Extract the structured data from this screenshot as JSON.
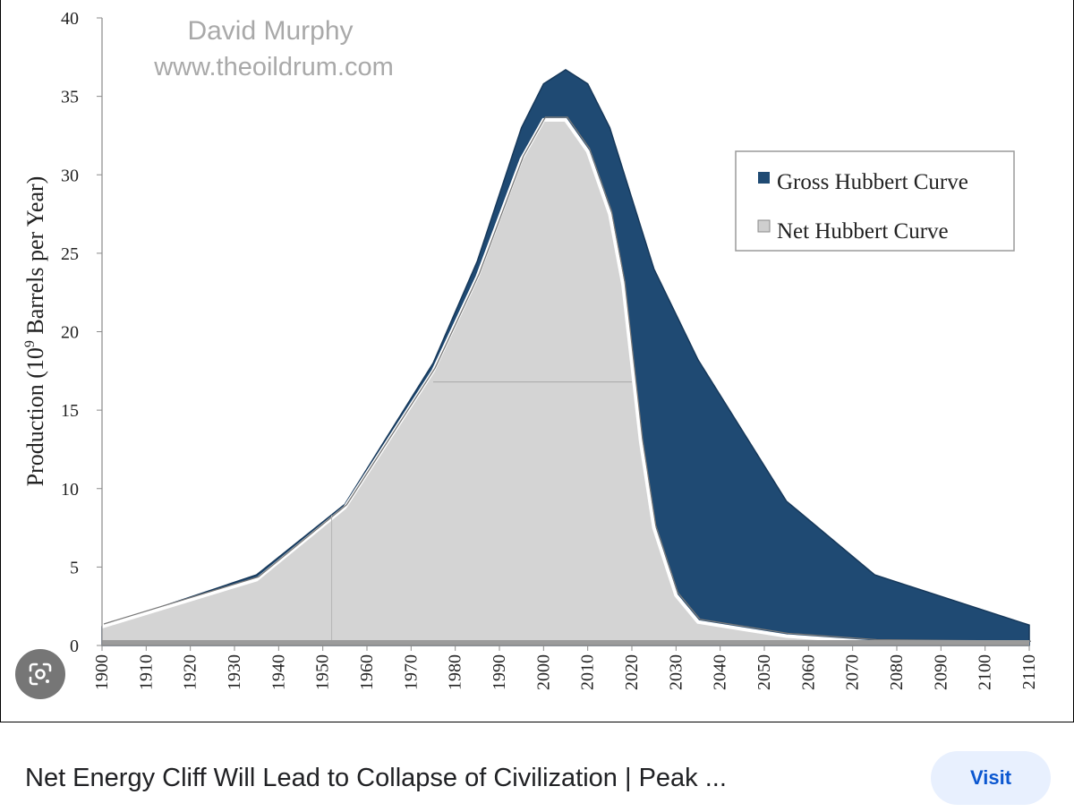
{
  "chart_data": {
    "type": "area",
    "watermark": [
      "David Murphy",
      "www.theoildrum.com"
    ],
    "xlabel": "",
    "ylabel": "Production (10",
    "ylabel_sup": "9",
    "ylabel_suffix": " Barrels per Year)",
    "xlim": [
      1900,
      2110
    ],
    "ylim": [
      0,
      40
    ],
    "x_ticks": [
      1900,
      1910,
      1920,
      1930,
      1940,
      1950,
      1960,
      1970,
      1980,
      1990,
      2000,
      2010,
      2020,
      2030,
      2040,
      2050,
      2060,
      2070,
      2080,
      2090,
      2100,
      2110
    ],
    "y_ticks": [
      0,
      5,
      10,
      15,
      20,
      25,
      30,
      35,
      40
    ],
    "grid": false,
    "legend_position": "top-right",
    "series": [
      {
        "name": "Gross Hubbert Curve",
        "color": "#1f4a73",
        "x": [
          1900,
          1935,
          1955,
          1975,
          1985,
          1995,
          2000,
          2005,
          2010,
          2015,
          2020,
          2025,
          2035,
          2055,
          2075,
          2110
        ],
        "values": [
          1.2,
          4.5,
          9,
          18,
          24.5,
          33,
          35.8,
          36.7,
          35.8,
          33,
          28.5,
          24,
          18.2,
          9.2,
          4.5,
          1.3
        ]
      },
      {
        "name": "Net Hubbert Curve",
        "color": "#d4d4d4",
        "x": [
          1900,
          1935,
          1955,
          1975,
          1985,
          1995,
          2000,
          2005,
          2010,
          2015,
          2018,
          2020,
          2022,
          2025,
          2030,
          2035,
          2055,
          2075,
          2110
        ],
        "values": [
          1.2,
          4.2,
          8.8,
          17.5,
          23.5,
          31,
          33.5,
          33.5,
          31.5,
          27.5,
          23,
          18,
          13,
          7.5,
          3.2,
          1.5,
          0.6,
          0.2,
          0.1
        ]
      }
    ]
  },
  "ui": {
    "lens_icon": "google-lens-icon",
    "caption_title": "Net Energy Cliff Will Lead to Collapse of Civilization | Peak ...",
    "visit_label": "Visit"
  }
}
